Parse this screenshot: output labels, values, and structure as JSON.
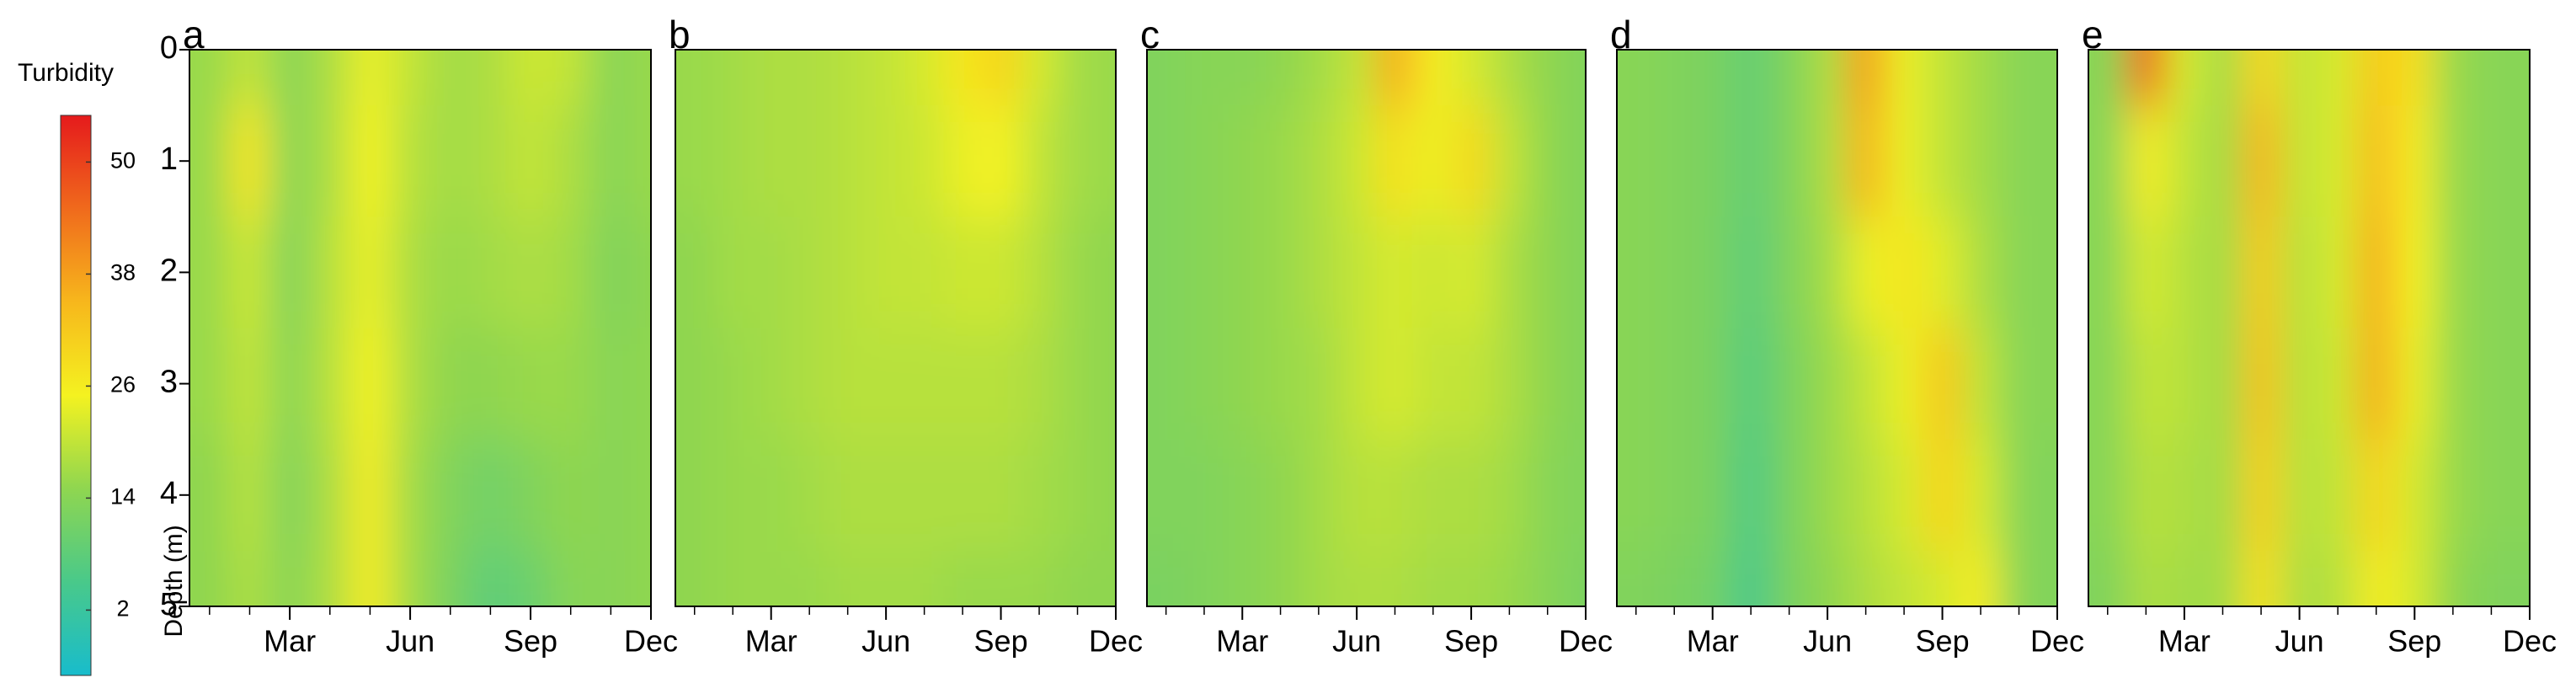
{
  "colorbar": {
    "label": "Turbidity",
    "lim": [
      -5,
      55
    ],
    "ticks": [
      2,
      14,
      26,
      38,
      50
    ],
    "colormap": [
      "#18bccc",
      "#49c98a",
      "#8fd650",
      "#f4f220",
      "#f7b71c",
      "#f06a1c",
      "#e51a1c"
    ]
  },
  "chart_data": [
    {
      "type": "heatmap",
      "title": "a",
      "ylabel": "Depth (m)",
      "ylim": [
        0,
        5
      ],
      "yticks": [
        0,
        1,
        2,
        3,
        4,
        5
      ],
      "inverted_y": true,
      "xlim": [
        0.5,
        12
      ],
      "xticks": [
        {
          "value": 3,
          "label": "Mar"
        },
        {
          "value": 6,
          "label": "Jun"
        },
        {
          "value": 9,
          "label": "Sep"
        },
        {
          "value": 12,
          "label": "Dec"
        }
      ],
      "xminorticks": [
        1,
        2,
        3,
        4,
        5,
        6,
        7,
        8,
        9,
        10,
        11,
        12
      ],
      "x": [
        1,
        2,
        3,
        4,
        5,
        6,
        7,
        8,
        9,
        10,
        11,
        12
      ],
      "y": [
        0,
        1,
        2,
        3,
        4,
        5
      ],
      "z": [
        [
          16,
          20,
          14,
          18,
          24,
          20,
          17,
          18,
          21,
          20,
          14,
          16
        ],
        [
          16,
          27,
          14,
          18,
          25,
          19,
          17,
          18,
          20,
          18,
          14,
          16
        ],
        [
          16,
          21,
          13,
          19,
          24,
          18,
          16,
          17,
          18,
          17,
          13,
          15
        ],
        [
          16,
          20,
          14,
          19,
          25,
          18,
          15,
          15,
          16,
          16,
          14,
          15
        ],
        [
          15,
          19,
          13,
          18,
          26,
          17,
          13,
          11,
          13,
          15,
          14,
          15
        ],
        [
          15,
          18,
          14,
          18,
          26,
          17,
          12,
          8,
          10,
          14,
          14,
          15
        ]
      ]
    },
    {
      "type": "heatmap",
      "title": "b",
      "ylim": [
        0,
        5
      ],
      "inverted_y": true,
      "xlim": [
        0.5,
        12
      ],
      "xticks": [
        {
          "value": 3,
          "label": "Mar"
        },
        {
          "value": 6,
          "label": "Jun"
        },
        {
          "value": 9,
          "label": "Sep"
        },
        {
          "value": 12,
          "label": "Dec"
        }
      ],
      "xminorticks": [
        1,
        2,
        3,
        4,
        5,
        6,
        7,
        8,
        9,
        10,
        11,
        12
      ],
      "x": [
        1,
        2,
        3,
        4,
        5,
        6,
        7,
        8,
        9,
        10,
        11,
        12
      ],
      "y": [
        0,
        1,
        2,
        3,
        4,
        5
      ],
      "z": [
        [
          16,
          17,
          18,
          18,
          19,
          20,
          22,
          27,
          30,
          22,
          17,
          16
        ],
        [
          16,
          17,
          18,
          18,
          19,
          20,
          21,
          24,
          25,
          20,
          17,
          16
        ],
        [
          15,
          17,
          17,
          18,
          19,
          20,
          20,
          21,
          21,
          19,
          16,
          15
        ],
        [
          15,
          16,
          17,
          18,
          19,
          19,
          19,
          19,
          19,
          18,
          16,
          15
        ],
        [
          15,
          16,
          16,
          17,
          18,
          18,
          18,
          18,
          18,
          17,
          16,
          15
        ],
        [
          15,
          16,
          16,
          16,
          17,
          17,
          17,
          16,
          16,
          16,
          15,
          15
        ]
      ]
    },
    {
      "type": "heatmap",
      "title": "c",
      "ylim": [
        0,
        5
      ],
      "inverted_y": true,
      "xlim": [
        0.5,
        12
      ],
      "xticks": [
        {
          "value": 3,
          "label": "Mar"
        },
        {
          "value": 6,
          "label": "Jun"
        },
        {
          "value": 9,
          "label": "Sep"
        },
        {
          "value": 12,
          "label": "Dec"
        }
      ],
      "xminorticks": [
        1,
        2,
        3,
        4,
        5,
        6,
        7,
        8,
        9,
        10,
        11,
        12
      ],
      "x": [
        1,
        2,
        3,
        4,
        5,
        6,
        7,
        8,
        9,
        10,
        11,
        12
      ],
      "y": [
        0,
        1,
        2,
        3,
        4,
        5
      ],
      "z": [
        [
          13,
          14,
          14,
          15,
          17,
          20,
          36,
          26,
          22,
          18,
          15,
          13
        ],
        [
          13,
          14,
          15,
          16,
          18,
          21,
          28,
          24,
          29,
          20,
          15,
          13
        ],
        [
          13,
          14,
          15,
          16,
          18,
          20,
          22,
          21,
          22,
          18,
          15,
          13
        ],
        [
          13,
          14,
          15,
          16,
          17,
          20,
          22,
          20,
          20,
          18,
          15,
          13
        ],
        [
          13,
          13,
          14,
          15,
          17,
          19,
          19,
          18,
          18,
          17,
          14,
          13
        ],
        [
          12,
          13,
          14,
          15,
          17,
          18,
          18,
          17,
          17,
          16,
          14,
          12
        ]
      ]
    },
    {
      "type": "heatmap",
      "title": "d",
      "ylim": [
        0,
        5
      ],
      "inverted_y": true,
      "xlim": [
        0.5,
        12
      ],
      "xticks": [
        {
          "value": 3,
          "label": "Mar"
        },
        {
          "value": 6,
          "label": "Jun"
        },
        {
          "value": 9,
          "label": "Sep"
        },
        {
          "value": 12,
          "label": "Dec"
        }
      ],
      "xminorticks": [
        1,
        2,
        3,
        4,
        5,
        6,
        7,
        8,
        9,
        10,
        11,
        12
      ],
      "x": [
        1,
        2,
        3,
        4,
        5,
        6,
        7,
        8,
        9,
        10,
        11,
        12
      ],
      "y": [
        0,
        1,
        2,
        3,
        4,
        5
      ],
      "z": [
        [
          14,
          13,
          12,
          9,
          13,
          18,
          38,
          24,
          20,
          17,
          14,
          14
        ],
        [
          14,
          13,
          12,
          9,
          13,
          18,
          35,
          24,
          20,
          17,
          14,
          14
        ],
        [
          14,
          13,
          12,
          8,
          13,
          17,
          24,
          27,
          23,
          18,
          14,
          14
        ],
        [
          14,
          13,
          12,
          7,
          12,
          16,
          20,
          24,
          32,
          20,
          14,
          14
        ],
        [
          14,
          13,
          12,
          6,
          12,
          16,
          19,
          22,
          30,
          22,
          14,
          13
        ],
        [
          13,
          12,
          11,
          5,
          12,
          15,
          18,
          20,
          22,
          26,
          14,
          13
        ]
      ]
    },
    {
      "type": "heatmap",
      "title": "e",
      "ylim": [
        0,
        5
      ],
      "inverted_y": true,
      "xlim": [
        0.5,
        12
      ],
      "xticks": [
        {
          "value": 3,
          "label": "Mar"
        },
        {
          "value": 6,
          "label": "Jun"
        },
        {
          "value": 9,
          "label": "Sep"
        },
        {
          "value": 12,
          "label": "Dec"
        }
      ],
      "xminorticks": [
        1,
        2,
        3,
        4,
        5,
        6,
        7,
        8,
        9,
        10,
        11,
        12
      ],
      "x": [
        1,
        2,
        3,
        4,
        5,
        6,
        7,
        8,
        9,
        10,
        11,
        12
      ],
      "y": [
        0,
        1,
        2,
        3,
        4,
        5
      ],
      "z": [
        [
          14,
          45,
          22,
          17,
          30,
          20,
          22,
          32,
          28,
          16,
          14,
          14
        ],
        [
          14,
          26,
          20,
          17,
          35,
          20,
          22,
          34,
          26,
          16,
          14,
          14
        ],
        [
          14,
          22,
          19,
          17,
          32,
          19,
          22,
          36,
          25,
          16,
          14,
          14
        ],
        [
          14,
          20,
          19,
          17,
          33,
          19,
          21,
          36,
          24,
          16,
          14,
          14
        ],
        [
          14,
          19,
          18,
          17,
          31,
          19,
          20,
          30,
          22,
          16,
          14,
          14
        ],
        [
          13,
          18,
          17,
          17,
          28,
          18,
          19,
          26,
          22,
          15,
          13,
          13
        ]
      ]
    }
  ]
}
